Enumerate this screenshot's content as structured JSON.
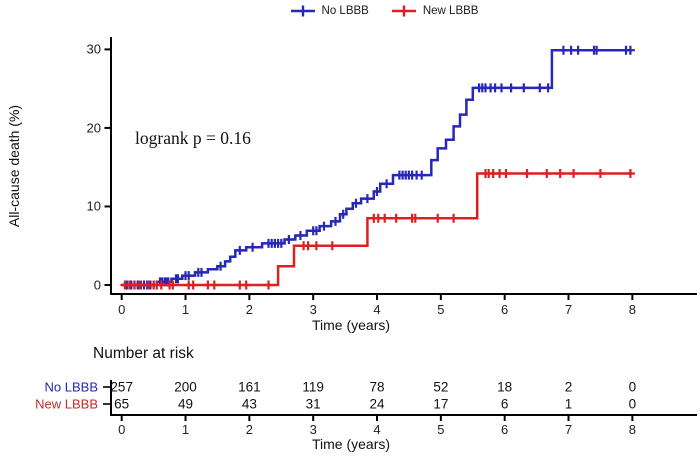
{
  "legend": {
    "items": [
      {
        "label": "No LBBB",
        "color": "#2727B8"
      },
      {
        "label": "New LBBB",
        "color": "#DB2121"
      }
    ]
  },
  "plot": {
    "annotation": "logrank p = 0.16",
    "y_label": "All-cause death (%)",
    "x_label": "Time (years)",
    "y_ticks": [
      0,
      10,
      20,
      30
    ],
    "x_ticks": [
      0,
      1,
      2,
      3,
      4,
      5,
      6,
      7,
      8
    ]
  },
  "risk_table": {
    "title": "Number at risk",
    "x_label": "Time (years)",
    "x_ticks": [
      0,
      1,
      2,
      3,
      4,
      5,
      6,
      7,
      8
    ],
    "rows": [
      {
        "label": "No LBBB",
        "color": "#2727B8",
        "counts": [
          257,
          200,
          161,
          119,
          78,
          52,
          18,
          2,
          0
        ]
      },
      {
        "label": "New LBBB",
        "color": "#C62A2A",
        "counts": [
          65,
          49,
          43,
          31,
          24,
          17,
          6,
          1,
          0
        ]
      }
    ]
  },
  "chart_data": {
    "type": "line",
    "subtype": "kaplan-meier-step",
    "title": "",
    "xlabel": "Time (years)",
    "ylabel": "All-cause death (%)",
    "xlim": [
      0,
      8
    ],
    "ylim": [
      0,
      30
    ],
    "x_ticks": [
      0,
      1,
      2,
      3,
      4,
      5,
      6,
      7,
      8
    ],
    "y_ticks": [
      0,
      10,
      20,
      30
    ],
    "annotation": "logrank p = 0.16",
    "legend_position": "top",
    "grid": false,
    "series": [
      {
        "name": "No LBBB",
        "color": "#2727B8",
        "at_risk": [
          257,
          200,
          161,
          119,
          78,
          52,
          18,
          2,
          0
        ],
        "steps": [
          [
            0,
            0
          ],
          [
            0.55,
            0
          ],
          [
            0.55,
            0.4
          ],
          [
            0.78,
            0.4
          ],
          [
            0.78,
            0.8
          ],
          [
            0.95,
            0.8
          ],
          [
            0.95,
            1.2
          ],
          [
            1.15,
            1.2
          ],
          [
            1.15,
            1.6
          ],
          [
            1.35,
            1.6
          ],
          [
            1.35,
            2.0
          ],
          [
            1.5,
            2.0
          ],
          [
            1.5,
            2.4
          ],
          [
            1.62,
            2.4
          ],
          [
            1.62,
            3.0
          ],
          [
            1.7,
            3.0
          ],
          [
            1.7,
            3.6
          ],
          [
            1.78,
            3.6
          ],
          [
            1.78,
            4.4
          ],
          [
            1.95,
            4.4
          ],
          [
            1.95,
            4.8
          ],
          [
            2.2,
            4.8
          ],
          [
            2.2,
            5.3
          ],
          [
            2.55,
            5.3
          ],
          [
            2.55,
            5.8
          ],
          [
            2.72,
            5.8
          ],
          [
            2.72,
            6.3
          ],
          [
            2.9,
            6.3
          ],
          [
            2.9,
            6.9
          ],
          [
            3.1,
            6.9
          ],
          [
            3.1,
            7.5
          ],
          [
            3.28,
            7.5
          ],
          [
            3.28,
            8.1
          ],
          [
            3.42,
            8.1
          ],
          [
            3.42,
            9.0
          ],
          [
            3.52,
            9.0
          ],
          [
            3.52,
            9.7
          ],
          [
            3.62,
            9.7
          ],
          [
            3.62,
            10.4
          ],
          [
            3.75,
            10.4
          ],
          [
            3.75,
            11.0
          ],
          [
            3.95,
            11.0
          ],
          [
            3.95,
            11.9
          ],
          [
            4.05,
            11.9
          ],
          [
            4.05,
            12.9
          ],
          [
            4.25,
            12.9
          ],
          [
            4.25,
            14.0
          ],
          [
            4.85,
            14.0
          ],
          [
            4.85,
            15.9
          ],
          [
            4.95,
            15.9
          ],
          [
            4.95,
            17.4
          ],
          [
            5.08,
            17.4
          ],
          [
            5.08,
            18.5
          ],
          [
            5.2,
            18.5
          ],
          [
            5.2,
            20.2
          ],
          [
            5.3,
            20.2
          ],
          [
            5.3,
            21.7
          ],
          [
            5.4,
            21.7
          ],
          [
            5.4,
            23.6
          ],
          [
            5.5,
            23.6
          ],
          [
            5.5,
            25.1
          ],
          [
            6.74,
            25.1
          ],
          [
            6.74,
            29.9
          ],
          [
            7.99,
            29.9
          ]
        ],
        "censors": [
          [
            0.08,
            0
          ],
          [
            0.15,
            0
          ],
          [
            0.2,
            0
          ],
          [
            0.25,
            0
          ],
          [
            0.3,
            0
          ],
          [
            0.35,
            0
          ],
          [
            0.4,
            0
          ],
          [
            0.45,
            0
          ],
          [
            0.5,
            0
          ],
          [
            0.6,
            0.4
          ],
          [
            0.63,
            0.4
          ],
          [
            0.67,
            0.4
          ],
          [
            0.7,
            0.4
          ],
          [
            0.73,
            0.4
          ],
          [
            0.85,
            0.8
          ],
          [
            0.88,
            0.8
          ],
          [
            1.0,
            1.2
          ],
          [
            1.05,
            1.2
          ],
          [
            1.2,
            1.6
          ],
          [
            1.25,
            1.6
          ],
          [
            1.55,
            2.4
          ],
          [
            1.85,
            4.4
          ],
          [
            2.05,
            4.8
          ],
          [
            2.3,
            5.3
          ],
          [
            2.35,
            5.3
          ],
          [
            2.4,
            5.3
          ],
          [
            2.45,
            5.3
          ],
          [
            2.5,
            5.3
          ],
          [
            2.62,
            5.8
          ],
          [
            2.8,
            6.3
          ],
          [
            3.0,
            6.9
          ],
          [
            3.05,
            6.9
          ],
          [
            3.17,
            7.5
          ],
          [
            3.35,
            8.1
          ],
          [
            3.47,
            9.0
          ],
          [
            3.67,
            10.4
          ],
          [
            3.85,
            11.0
          ],
          [
            4.0,
            11.9
          ],
          [
            4.15,
            12.9
          ],
          [
            4.35,
            14.0
          ],
          [
            4.4,
            14.0
          ],
          [
            4.45,
            14.0
          ],
          [
            4.5,
            14.0
          ],
          [
            4.55,
            14.0
          ],
          [
            4.62,
            14.0
          ],
          [
            4.7,
            14.0
          ],
          [
            5.6,
            25.1
          ],
          [
            5.65,
            25.1
          ],
          [
            5.7,
            25.1
          ],
          [
            5.78,
            25.1
          ],
          [
            5.85,
            25.1
          ],
          [
            5.95,
            25.1
          ],
          [
            6.1,
            25.1
          ],
          [
            6.3,
            25.1
          ],
          [
            6.55,
            25.1
          ],
          [
            6.68,
            25.1
          ],
          [
            6.92,
            29.9
          ],
          [
            7.04,
            29.9
          ],
          [
            7.15,
            29.9
          ],
          [
            7.4,
            29.9
          ],
          [
            7.44,
            29.9
          ],
          [
            7.9,
            29.9
          ],
          [
            7.97,
            29.9
          ]
        ]
      },
      {
        "name": "New LBBB",
        "color": "#DB2121",
        "at_risk": [
          65,
          49,
          43,
          31,
          24,
          17,
          6,
          1,
          0
        ],
        "steps": [
          [
            0,
            0
          ],
          [
            2.45,
            0
          ],
          [
            2.45,
            2.4
          ],
          [
            2.7,
            2.4
          ],
          [
            2.7,
            5.0
          ],
          [
            3.85,
            5.0
          ],
          [
            3.85,
            8.5
          ],
          [
            5.57,
            8.5
          ],
          [
            5.57,
            14.2
          ],
          [
            8.0,
            14.2
          ]
        ],
        "censors": [
          [
            0.05,
            0
          ],
          [
            0.12,
            0
          ],
          [
            0.2,
            0
          ],
          [
            0.28,
            0
          ],
          [
            0.42,
            0
          ],
          [
            0.5,
            0
          ],
          [
            0.55,
            0
          ],
          [
            0.62,
            0
          ],
          [
            0.75,
            0
          ],
          [
            0.8,
            0
          ],
          [
            1.05,
            0
          ],
          [
            1.12,
            0
          ],
          [
            1.35,
            0
          ],
          [
            1.45,
            0
          ],
          [
            1.85,
            0
          ],
          [
            1.95,
            0
          ],
          [
            2.3,
            0
          ],
          [
            2.85,
            5.0
          ],
          [
            2.92,
            5.0
          ],
          [
            3.05,
            5.0
          ],
          [
            3.3,
            5.0
          ],
          [
            3.95,
            8.5
          ],
          [
            4.02,
            8.5
          ],
          [
            4.12,
            8.5
          ],
          [
            4.3,
            8.5
          ],
          [
            4.55,
            8.5
          ],
          [
            4.6,
            8.5
          ],
          [
            4.95,
            8.5
          ],
          [
            5.2,
            8.5
          ],
          [
            5.7,
            14.2
          ],
          [
            5.75,
            14.2
          ],
          [
            5.82,
            14.2
          ],
          [
            5.92,
            14.2
          ],
          [
            6.02,
            14.2
          ],
          [
            6.35,
            14.2
          ],
          [
            6.66,
            14.2
          ],
          [
            6.87,
            14.2
          ],
          [
            7.08,
            14.2
          ],
          [
            7.5,
            14.2
          ],
          [
            7.97,
            14.2
          ]
        ]
      }
    ]
  }
}
